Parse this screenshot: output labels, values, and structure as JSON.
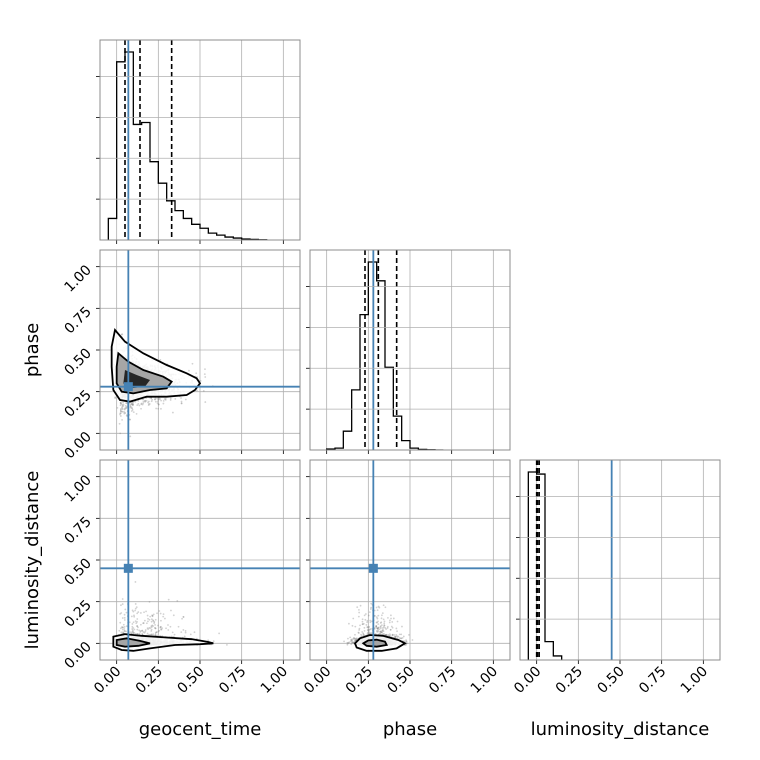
{
  "chart_data": {
    "type": "corner",
    "parameters": [
      "geocent_time",
      "phase",
      "luminosity_distance"
    ],
    "axis_range": [
      -0.1,
      1.1
    ],
    "tick_values": [
      0.0,
      0.25,
      0.5,
      0.75,
      1.0
    ],
    "tick_labels": [
      "0.00",
      "0.25",
      "0.50",
      "0.75",
      "1.00"
    ],
    "grid": true,
    "colors": {
      "truth": "#4682b4",
      "hist": "#000000",
      "scatter": "#7f7f7f"
    },
    "truths": {
      "geocent_time": 0.07,
      "phase": 0.28,
      "luminosity_distance": 0.45
    },
    "histograms": {
      "geocent_time": {
        "bin_edges": [
          -0.05,
          0.0,
          0.05,
          0.1,
          0.15,
          0.2,
          0.25,
          0.3,
          0.35,
          0.4,
          0.45,
          0.5,
          0.55,
          0.6,
          0.65,
          0.7,
          0.75,
          0.8,
          0.85,
          0.9
        ],
        "counts": [
          0.11,
          0.91,
          0.96,
          0.59,
          0.6,
          0.4,
          0.29,
          0.2,
          0.15,
          0.11,
          0.08,
          0.06,
          0.035,
          0.025,
          0.015,
          0.01,
          0.005,
          0.003,
          0.001
        ],
        "quantiles": [
          0.05,
          0.14,
          0.33
        ]
      },
      "phase": {
        "bin_edges": [
          0.0,
          0.05,
          0.1,
          0.15,
          0.2,
          0.25,
          0.3,
          0.35,
          0.4,
          0.45,
          0.5,
          0.55,
          0.6,
          0.65,
          0.7
        ],
        "counts": [
          0.005,
          0.01,
          0.1,
          0.32,
          0.72,
          1.0,
          0.9,
          0.44,
          0.18,
          0.05,
          0.01,
          0.003,
          0.001,
          0.0
        ],
        "quantiles": [
          0.23,
          0.31,
          0.42
        ]
      },
      "luminosity_distance": {
        "bin_edges": [
          -0.05,
          0.0,
          0.05,
          0.1,
          0.15
        ],
        "counts": [
          0.92,
          0.91,
          0.09,
          0.02
        ],
        "quantiles": [
          0.0,
          0.005,
          0.015
        ]
      }
    },
    "contours": [
      {
        "x": "geocent_time",
        "y": "phase",
        "center": [
          0.09,
          0.31
        ],
        "outer": [
          [
            -0.01,
            0.62
          ],
          [
            0.05,
            0.55
          ],
          [
            0.16,
            0.48
          ],
          [
            0.3,
            0.41
          ],
          [
            0.42,
            0.36
          ],
          [
            0.48,
            0.33
          ],
          [
            0.5,
            0.3
          ],
          [
            0.47,
            0.26
          ],
          [
            0.42,
            0.23
          ],
          [
            0.3,
            0.22
          ],
          [
            0.18,
            0.22
          ],
          [
            0.08,
            0.19
          ],
          [
            0.02,
            0.2
          ],
          [
            -0.02,
            0.26
          ],
          [
            -0.03,
            0.4
          ],
          [
            -0.03,
            0.52
          ]
        ],
        "inner": [
          [
            0.01,
            0.48
          ],
          [
            0.07,
            0.43
          ],
          [
            0.16,
            0.38
          ],
          [
            0.28,
            0.34
          ],
          [
            0.33,
            0.31
          ],
          [
            0.3,
            0.27
          ],
          [
            0.2,
            0.26
          ],
          [
            0.1,
            0.24
          ],
          [
            0.03,
            0.25
          ],
          [
            0.0,
            0.3
          ],
          [
            0.0,
            0.4
          ]
        ],
        "core": [
          [
            0.05,
            0.38
          ],
          [
            0.12,
            0.35
          ],
          [
            0.2,
            0.32
          ],
          [
            0.17,
            0.28
          ],
          [
            0.08,
            0.27
          ],
          [
            0.04,
            0.3
          ]
        ]
      },
      {
        "x": "geocent_time",
        "y": "luminosity_distance",
        "center": [
          0.06,
          0.0
        ],
        "outer": [
          [
            -0.02,
            0.04
          ],
          [
            0.05,
            0.055
          ],
          [
            0.15,
            0.045
          ],
          [
            0.3,
            0.035
          ],
          [
            0.45,
            0.025
          ],
          [
            0.55,
            0.008
          ],
          [
            0.58,
            0.0
          ],
          [
            0.5,
            -0.005
          ],
          [
            0.35,
            -0.01
          ],
          [
            0.2,
            -0.03
          ],
          [
            0.1,
            -0.045
          ],
          [
            0.03,
            -0.04
          ],
          [
            -0.02,
            -0.02
          ]
        ],
        "inner": [
          [
            0.0,
            0.02
          ],
          [
            0.06,
            0.03
          ],
          [
            0.14,
            0.015
          ],
          [
            0.2,
            0.0
          ],
          [
            0.13,
            -0.015
          ],
          [
            0.05,
            -0.02
          ],
          [
            0.0,
            -0.01
          ]
        ],
        "core": []
      },
      {
        "x": "phase",
        "y": "luminosity_distance",
        "center": [
          0.29,
          0.0
        ],
        "outer": [
          [
            0.17,
            0.0
          ],
          [
            0.2,
            0.03
          ],
          [
            0.26,
            0.05
          ],
          [
            0.34,
            0.045
          ],
          [
            0.43,
            0.02
          ],
          [
            0.47,
            0.0
          ],
          [
            0.42,
            -0.03
          ],
          [
            0.33,
            -0.045
          ],
          [
            0.24,
            -0.045
          ],
          [
            0.18,
            -0.025
          ]
        ],
        "inner": [
          [
            0.22,
            0.0
          ],
          [
            0.25,
            0.018
          ],
          [
            0.3,
            0.022
          ],
          [
            0.35,
            0.01
          ],
          [
            0.36,
            -0.01
          ],
          [
            0.3,
            -0.02
          ],
          [
            0.24,
            -0.015
          ]
        ],
        "core": []
      }
    ]
  }
}
